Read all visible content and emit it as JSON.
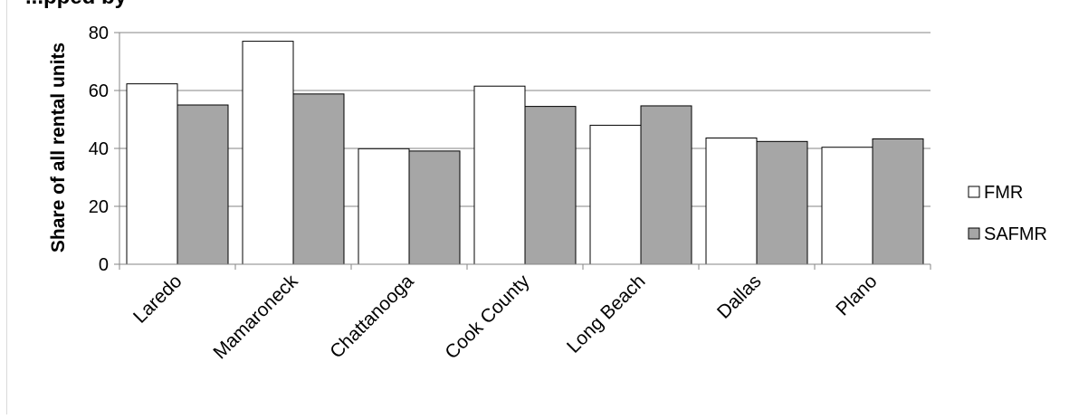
{
  "title": "...pped by",
  "chart_data": {
    "type": "bar",
    "title": "...pped by",
    "xlabel": "",
    "ylabel": "Share of all rental units",
    "categories": [
      "Laredo",
      "Mamaroneck",
      "Chattanooga",
      "Cook County",
      "Long Beach",
      "Dallas",
      "Plano"
    ],
    "series": [
      {
        "name": "FMR",
        "color": "#ffffff",
        "values": [
          62.3,
          77.0,
          39.9,
          61.5,
          48.0,
          43.6,
          40.4
        ]
      },
      {
        "name": "SAFMR",
        "color": "#a6a6a6",
        "values": [
          55.0,
          58.8,
          39.1,
          54.5,
          54.7,
          42.4,
          43.3
        ]
      }
    ],
    "ylim": [
      0,
      80
    ],
    "yticks": [
      0,
      20,
      40,
      60,
      80
    ],
    "grid": true,
    "legend_position": "right"
  }
}
